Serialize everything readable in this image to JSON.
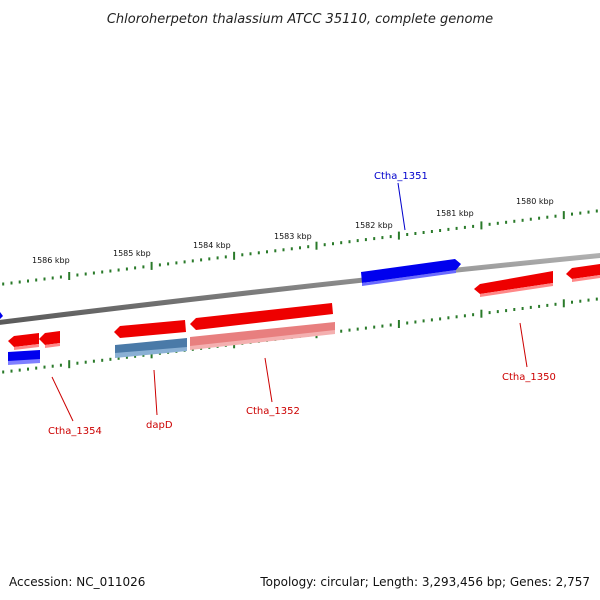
{
  "title": "Chloroherpeton thalassium ATCC 35110, complete genome",
  "footer": {
    "accession": "Accession: NC_011026",
    "summary": "Topology: circular; Length: 3,293,456 bp; Genes: 2,757"
  },
  "scale_labels": [
    "1586 kbp",
    "1585 kbp",
    "1584 kbp",
    "1583 kbp",
    "1582 kbp",
    "1581 kbp",
    "1580 kbp"
  ],
  "gene_labels": [
    {
      "text": "Ctha_1351",
      "color": "#0000cc"
    },
    {
      "text": "Ctha_1350",
      "color": "#cc0000"
    },
    {
      "text": "Ctha_1352",
      "color": "#cc0000"
    },
    {
      "text": "dapD",
      "color": "#cc0000"
    },
    {
      "text": "Ctha_1354",
      "color": "#cc0000"
    }
  ],
  "colors": {
    "forward_cds": "#0000ff",
    "reverse_cds": "#ff0000",
    "reverse_cds_light": "#ee8888",
    "steelblue_cds": "#4a7aa8",
    "backbone": "#888888",
    "tick": "#2a7a2a"
  }
}
